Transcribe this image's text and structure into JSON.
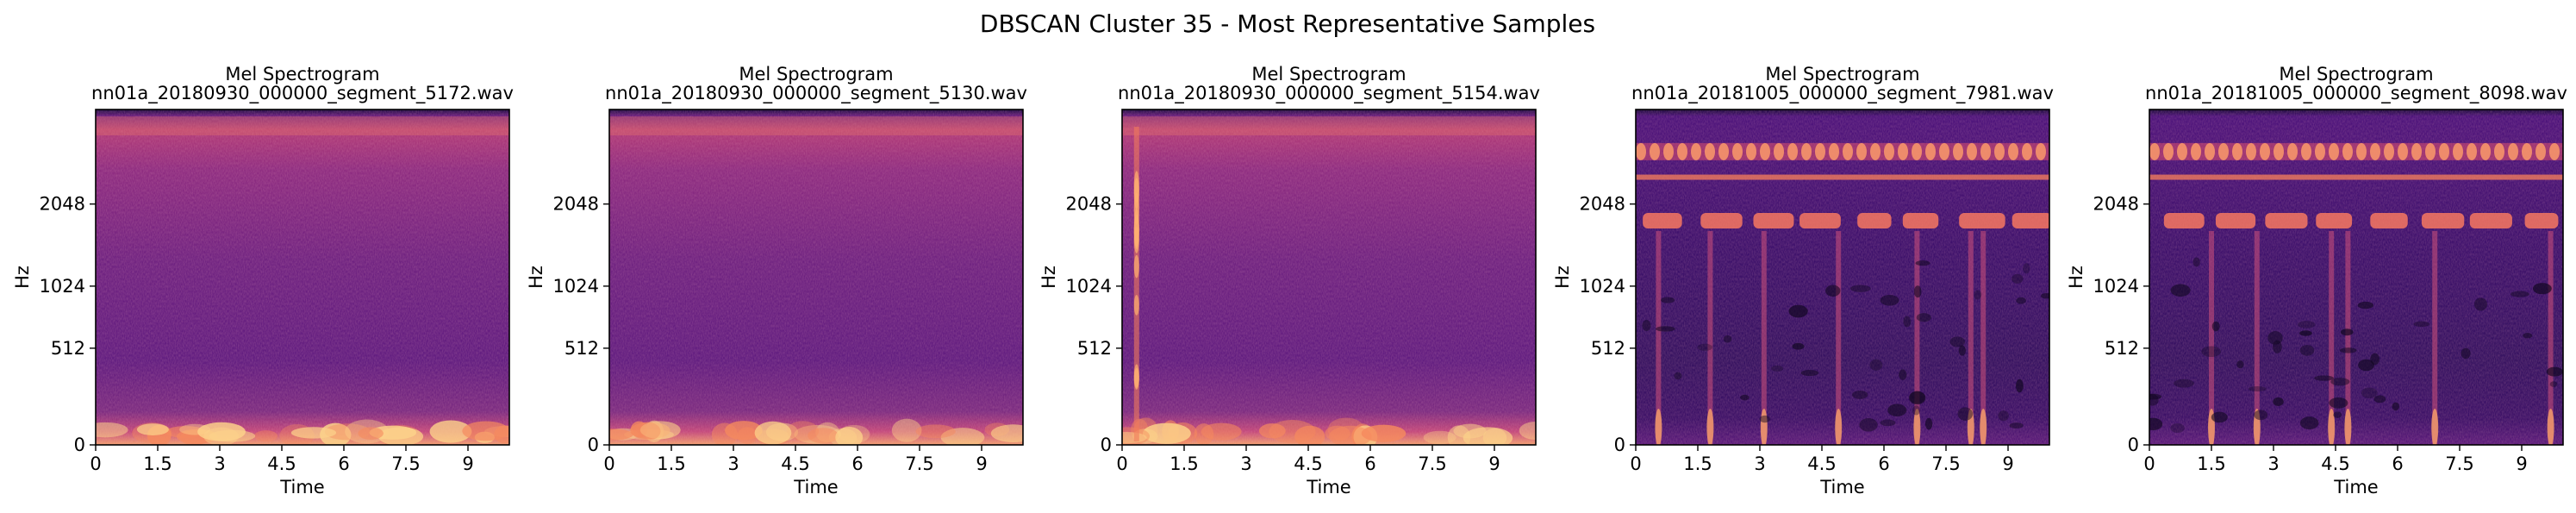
{
  "figure_title": "DBSCAN Cluster 35 - Most Representative Samples",
  "colormap": "magma",
  "chart_data": [
    {
      "type": "heatmap",
      "title": "Mel Spectrogram",
      "subtitle": "nn01a_20180930_000000_segment_5172.wav",
      "xlabel": "Time",
      "ylabel": "Hz",
      "xticks": [
        0,
        1.5,
        3,
        4.5,
        6,
        7.5,
        9
      ],
      "xtick_labels": [
        "0",
        "1.5",
        "3",
        "4.5",
        "6",
        "7.5",
        "9"
      ],
      "xlim": [
        0,
        10
      ],
      "yscale": "mel",
      "yticks": [
        0,
        512,
        1024,
        2048
      ],
      "ytick_labels": [
        "0",
        "512",
        "1024",
        "2048"
      ],
      "ylim": [
        0,
        4000
      ],
      "pattern": "broadband"
    },
    {
      "type": "heatmap",
      "title": "Mel Spectrogram",
      "subtitle": "nn01a_20180930_000000_segment_5130.wav",
      "xlabel": "Time",
      "ylabel": "Hz",
      "xticks": [
        0,
        1.5,
        3,
        4.5,
        6,
        7.5,
        9
      ],
      "xtick_labels": [
        "0",
        "1.5",
        "3",
        "4.5",
        "6",
        "7.5",
        "9"
      ],
      "xlim": [
        0,
        10
      ],
      "yscale": "mel",
      "yticks": [
        0,
        512,
        1024,
        2048
      ],
      "ytick_labels": [
        "0",
        "512",
        "1024",
        "2048"
      ],
      "ylim": [
        0,
        4000
      ],
      "pattern": "broadband"
    },
    {
      "type": "heatmap",
      "title": "Mel Spectrogram",
      "subtitle": "nn01a_20180930_000000_segment_5154.wav",
      "xlabel": "Time",
      "ylabel": "Hz",
      "xticks": [
        0,
        1.5,
        3,
        4.5,
        6,
        7.5,
        9
      ],
      "xtick_labels": [
        "0",
        "1.5",
        "3",
        "4.5",
        "6",
        "7.5",
        "9"
      ],
      "xlim": [
        0,
        10
      ],
      "yscale": "mel",
      "yticks": [
        0,
        512,
        1024,
        2048
      ],
      "ytick_labels": [
        "0",
        "512",
        "1024",
        "2048"
      ],
      "ylim": [
        0,
        4000
      ],
      "pattern": "broadband-click"
    },
    {
      "type": "heatmap",
      "title": "Mel Spectrogram",
      "subtitle": "nn01a_20181005_000000_segment_7981.wav",
      "xlabel": "Time",
      "ylabel": "Hz",
      "xticks": [
        0,
        1.5,
        3,
        4.5,
        6,
        7.5,
        9
      ],
      "xtick_labels": [
        "0",
        "1.5",
        "3",
        "4.5",
        "6",
        "7.5",
        "9"
      ],
      "xlim": [
        0,
        10
      ],
      "yscale": "mel",
      "yticks": [
        0,
        512,
        1024,
        2048
      ],
      "ytick_labels": [
        "0",
        "512",
        "1024",
        "2048"
      ],
      "ylim": [
        0,
        4000
      ],
      "pattern": "tonal-bands"
    },
    {
      "type": "heatmap",
      "title": "Mel Spectrogram",
      "subtitle": "nn01a_20181005_000000_segment_8098.wav",
      "xlabel": "Time",
      "ylabel": "Hz",
      "xticks": [
        0,
        1.5,
        3,
        4.5,
        6,
        7.5,
        9
      ],
      "xtick_labels": [
        "0",
        "1.5",
        "3",
        "4.5",
        "6",
        "7.5",
        "9"
      ],
      "xlim": [
        0,
        10
      ],
      "yscale": "mel",
      "yticks": [
        0,
        512,
        1024,
        2048
      ],
      "ytick_labels": [
        "0",
        "512",
        "1024",
        "2048"
      ],
      "ylim": [
        0,
        4000
      ],
      "pattern": "tonal-bands"
    }
  ]
}
